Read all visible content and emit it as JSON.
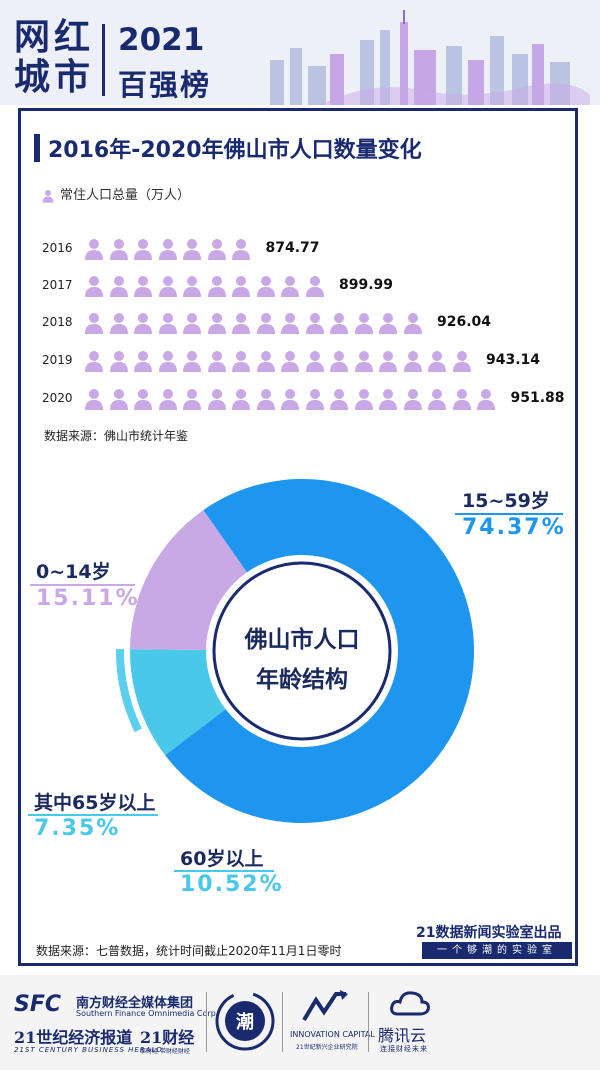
{
  "header": {
    "logo_chars": [
      "网",
      "红",
      "城",
      "市"
    ],
    "year": "2021",
    "rank_title": "百强榜"
  },
  "title": "2016年-2020年佛山市人口数量变化",
  "colors": {
    "navy": "#1a2a6e",
    "purple": "#c9a8e6",
    "blue": "#1e96f0",
    "cyan": "#4ac8ea",
    "sub_cyan": "#5ad0ee"
  },
  "chart_data": [
    {
      "type": "bar",
      "legend": "常住人口总量（万人）",
      "categories": [
        "2016",
        "2017",
        "2018",
        "2019",
        "2020"
      ],
      "values": [
        874.77,
        899.99,
        926.04,
        943.14,
        951.88
      ],
      "value_labels": [
        "874.77",
        "899.99",
        "926.04",
        "943.14",
        "951.88"
      ],
      "icon_counts": [
        7,
        10,
        14,
        16,
        17
      ],
      "source": "数据来源：佛山市统计年鉴"
    },
    {
      "type": "pie",
      "title": "佛山市人口年龄结构",
      "center_lines": [
        "佛山市人口",
        "年龄结构"
      ],
      "slices": [
        {
          "label": "15~59岁",
          "value": 74.37,
          "pct": "74.37%",
          "color": "#1e96f0"
        },
        {
          "label": "60岁以上",
          "value": 10.52,
          "pct": "10.52%",
          "color": "#4ac8ea"
        },
        {
          "label": "0~14岁",
          "value": 15.11,
          "pct": "15.11%",
          "color": "#c9a8e6"
        }
      ],
      "sub_slice": {
        "label": "其中65岁以上",
        "value": 7.35,
        "pct": "7.35%",
        "color": "#5ad0ee"
      },
      "source": "数据来源：七普数据，统计时间截止2020年11月1日零时"
    }
  ],
  "producer": {
    "label": "21数据新闻实验室出品",
    "motto": "一个够潮的实验室"
  },
  "footer": {
    "sfc": "SFC",
    "sfc_cn": "南方财经全媒体集团",
    "sfc_en": "Southern Finance Omnimedia Corp.",
    "herald": "21世纪经济报道",
    "herald_en": "21ST CENTURY BUSINESS HERALD",
    "c21": "21财经",
    "c21_sub": "拿财经 带财经财经",
    "chao": "潮",
    "inno": "INNOVATION CAPITAL",
    "inno_sub": "21世纪新兴企业研究院",
    "tencent": "腾讯云",
    "tencent_sub": "连接财经未来"
  }
}
